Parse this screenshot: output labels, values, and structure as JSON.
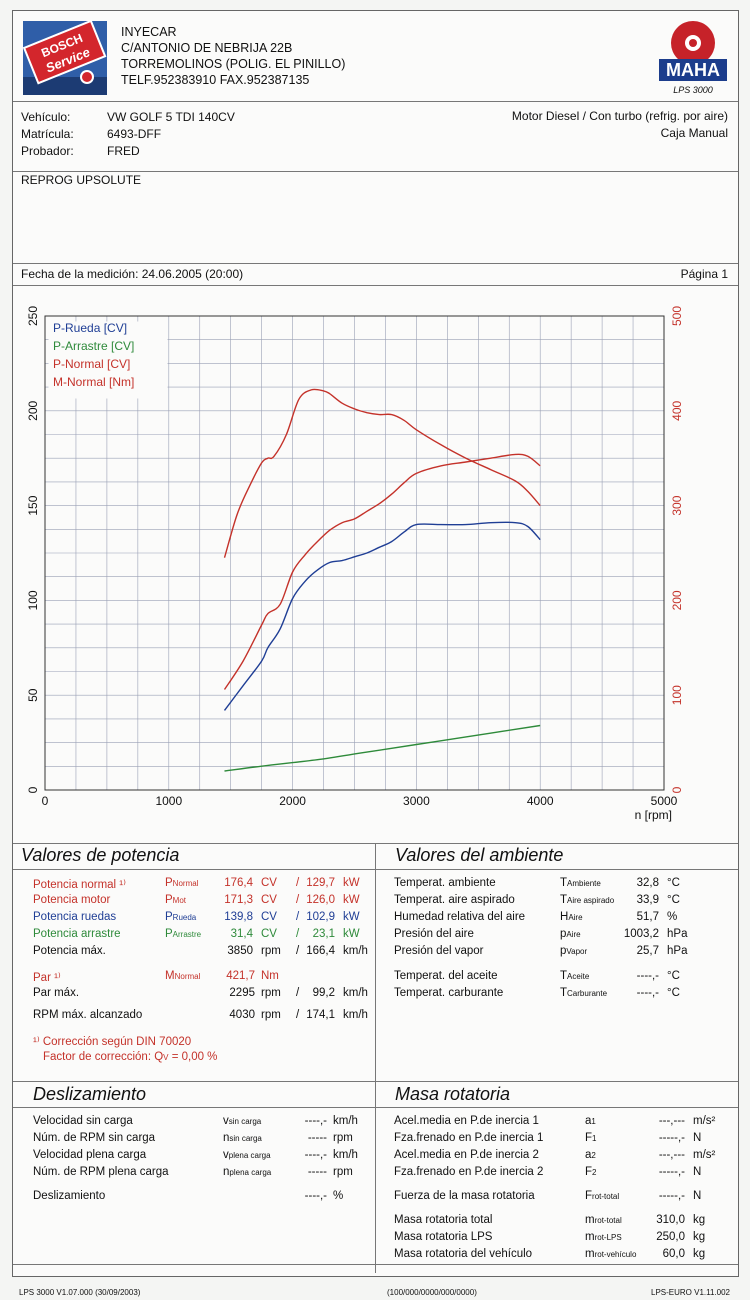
{
  "header": {
    "company": "INYECAR",
    "address1": "C/ANTONIO DE NEBRIJA 22B",
    "address2": "TORREMOLINOS (POLIG. EL PINILLO)",
    "phone": "TELF.952383910 FAX.952387135",
    "bosch_brand": "BOSCH",
    "bosch_service": "Service",
    "maha_brand": "MAHA",
    "maha_model": "LPS 3000"
  },
  "vehicle": {
    "vehiculo_label": "Vehículo:",
    "vehiculo": "VW GOLF 5 TDI 140CV",
    "matricula_label": "Matrícula:",
    "matricula": "6493-DFF",
    "probador_label": "Probador:",
    "probador": "FRED",
    "engine": "Motor Diesel / Con turbo (refrig. por aire)",
    "gearbox": "Caja Manual"
  },
  "notes": "REPROG UPSOLUTE",
  "measurement": {
    "date_text": "Fecha de la medición: 24.06.2005 (20:00)",
    "page_text": "Página 1"
  },
  "chart_data": {
    "type": "line",
    "xlabel": "n [rpm]",
    "xlim": [
      0,
      5000
    ],
    "ylim_left": [
      0,
      250
    ],
    "ylim_right": [
      0,
      500
    ],
    "x_ticks": [
      0,
      1000,
      2000,
      3000,
      4000,
      5000
    ],
    "y_ticks_left": [
      0,
      50,
      100,
      150,
      200,
      250
    ],
    "y_ticks_right": [
      0,
      100,
      200,
      300,
      400,
      500
    ],
    "grid": true,
    "legend_position": "top-left",
    "series": [
      {
        "name": "P-Rueda [CV]",
        "axis": "left",
        "color": "#1f3e95",
        "x": [
          1450,
          1600,
          1750,
          1800,
          1900,
          2000,
          2100,
          2200,
          2300,
          2400,
          2500,
          2600,
          2700,
          2800,
          2900,
          3000,
          3200,
          3400,
          3600,
          3800,
          3900,
          4000
        ],
        "y": [
          42,
          55,
          68,
          75,
          85,
          101,
          110,
          116,
          120,
          121,
          123,
          125,
          128,
          131,
          136,
          140,
          140,
          140,
          141,
          141,
          139,
          132
        ]
      },
      {
        "name": "P-Arrastre [CV]",
        "axis": "left",
        "color": "#2e8a3a",
        "x": [
          1450,
          1800,
          2200,
          2600,
          3000,
          3400,
          3700,
          4000
        ],
        "y": [
          10,
          13,
          16,
          20,
          24,
          28,
          31,
          34
        ]
      },
      {
        "name": "P-Normal [CV]",
        "axis": "left",
        "color": "#c4322a",
        "x": [
          1450,
          1600,
          1750,
          1800,
          1900,
          2000,
          2100,
          2200,
          2300,
          2400,
          2500,
          2600,
          2700,
          2800,
          2900,
          3000,
          3200,
          3400,
          3600,
          3800,
          3900,
          4000
        ],
        "y": [
          53,
          68,
          87,
          93,
          98,
          115,
          124,
          131,
          137,
          141,
          143,
          147,
          151,
          156,
          162,
          167,
          171,
          173,
          175,
          177,
          176,
          171
        ]
      },
      {
        "name": "M-Normal [Nm]",
        "axis": "right",
        "color": "#c4322a",
        "x": [
          1450,
          1550,
          1650,
          1750,
          1800,
          1850,
          1950,
          2050,
          2150,
          2250,
          2300,
          2400,
          2500,
          2600,
          2700,
          2800,
          2900,
          3000,
          3200,
          3400,
          3600,
          3800,
          3900,
          4000
        ],
        "y": [
          245,
          290,
          320,
          345,
          350,
          352,
          375,
          412,
          422,
          421,
          418,
          408,
          402,
          398,
          396,
          396,
          390,
          380,
          364,
          350,
          338,
          326,
          315,
          300
        ]
      }
    ]
  },
  "potencia": {
    "title": "Valores de potencia",
    "rows": [
      {
        "label": "Potencia normal ¹⁾",
        "sym": "P",
        "sub": "Normal",
        "v1": "176,4",
        "u1": "CV",
        "sep": "/",
        "v2": "129,7",
        "u2": "kW",
        "color": "red"
      },
      {
        "label": "Potencia motor",
        "sym": "P",
        "sub": "Mot",
        "v1": "171,3",
        "u1": "CV",
        "sep": "/",
        "v2": "126,0",
        "u2": "kW",
        "color": "red"
      },
      {
        "label": "Potencia ruedas",
        "sym": "P",
        "sub": "Rueda",
        "v1": "139,8",
        "u1": "CV",
        "sep": "/",
        "v2": "102,9",
        "u2": "kW",
        "color": "blue"
      },
      {
        "label": "Potencia arrastre",
        "sym": "P",
        "sub": "Arrastre",
        "v1": "31,4",
        "u1": "CV",
        "sep": "/",
        "v2": "23,1",
        "u2": "kW",
        "color": "green"
      },
      {
        "label": "Potencia máx.",
        "sym": "",
        "sub": "",
        "v1": "3850",
        "u1": "rpm",
        "sep": "/",
        "v2": "166,4",
        "u2": "km/h",
        "color": "black"
      }
    ],
    "par_label": "Par ¹⁾",
    "par_sym": "M",
    "par_sub": "Normal",
    "par_value": "421,7",
    "par_unit": "Nm",
    "parmax_label": "Par máx.",
    "parmax_v1": "2295",
    "parmax_u1": "rpm",
    "parmax_sep": "/",
    "parmax_v2": "99,2",
    "parmax_u2": "km/h",
    "rpmmax_label": "RPM máx. alcanzado",
    "rpmmax_v1": "4030",
    "rpmmax_u1": "rpm",
    "rpmmax_sep": "/",
    "rpmmax_v2": "174,1",
    "rpmmax_u2": "km/h",
    "correction1": "¹⁾ Corrección según DIN 70020",
    "correction2": "Factor de corrección: Q",
    "correction_sub": "V",
    "correction_value": " =   0,00 %"
  },
  "ambiente": {
    "title": "Valores del ambiente",
    "rows": [
      {
        "label": "Temperat. ambiente",
        "sym": "T",
        "sub": "Ambiente",
        "val": "32,8",
        "unit": "°C"
      },
      {
        "label": "Temperat. aire aspirado",
        "sym": "T",
        "sub": "Aire aspirado",
        "val": "33,9",
        "unit": "°C"
      },
      {
        "label": "Humedad relativa del aire",
        "sym": "H",
        "sub": "Aire",
        "val": "51,7",
        "unit": "%"
      },
      {
        "label": "Presión del aire",
        "sym": "p",
        "sub": "Aire",
        "val": "1003,2",
        "unit": "hPa"
      },
      {
        "label": "Presión del vapor",
        "sym": "p",
        "sub": "Vapor",
        "val": "25,7",
        "unit": "hPa"
      },
      {
        "label": "Temperat. del aceite",
        "sym": "T",
        "sub": "Aceite",
        "val": "----,-",
        "unit": "°C"
      },
      {
        "label": "Temperat. carburante",
        "sym": "T",
        "sub": "Carburante",
        "val": "----,-",
        "unit": "°C"
      }
    ]
  },
  "deslizamiento": {
    "title": "Deslizamiento",
    "rows": [
      {
        "label": "Velocidad sin carga",
        "sym": "v",
        "sub": "sin carga",
        "val": "----,-",
        "unit": "km/h"
      },
      {
        "label": "Núm. de RPM sin carga",
        "sym": "n",
        "sub": "sin carga",
        "val": "-----",
        "unit": "rpm"
      },
      {
        "label": "Velocidad plena carga",
        "sym": "v",
        "sub": "plena carga",
        "val": "----,-",
        "unit": "km/h"
      },
      {
        "label": "Núm. de RPM plena carga",
        "sym": "n",
        "sub": "plena carga",
        "val": "-----",
        "unit": "rpm"
      },
      {
        "label": "Deslizamiento",
        "sym": "",
        "sub": "",
        "val": "----,-",
        "unit": "%"
      }
    ]
  },
  "masa": {
    "title": "Masa rotatoria",
    "rows": [
      {
        "label": "Acel.media en P.de inercia 1",
        "sym": "a",
        "sub": "1",
        "val": "---,---",
        "unit": "m/s²"
      },
      {
        "label": "Fza.frenado en P.de inercia 1",
        "sym": "F",
        "sub": "1",
        "val": "-----,-",
        "unit": "N"
      },
      {
        "label": "Acel.media en P.de inercia 2",
        "sym": "a",
        "sub": "2",
        "val": "---,---",
        "unit": "m/s²"
      },
      {
        "label": "Fza.frenado en P.de inercia 2",
        "sym": "F",
        "sub": "2",
        "val": "-----,-",
        "unit": "N"
      },
      {
        "label": "Fuerza de la masa rotatoria",
        "sym": "F",
        "sub": "rot-total",
        "val": "-----,-",
        "unit": "N"
      },
      {
        "label": "Masa rotatoria total",
        "sym": "m",
        "sub": "rot-total",
        "val": "310,0",
        "unit": "kg"
      },
      {
        "label": "Masa rotatoria LPS",
        "sym": "m",
        "sub": "rot-LPS",
        "val": "250,0",
        "unit": "kg"
      },
      {
        "label": "Masa rotatoria del vehículo",
        "sym": "m",
        "sub": "rot-vehículo",
        "val": "60,0",
        "unit": "kg"
      }
    ]
  },
  "footer": {
    "left": "LPS 3000 V1.07.000 (30/09/2003)",
    "center": "(100/000/0000/000/0000)",
    "right": "LPS-EURO V1.11.002"
  },
  "colors": {
    "red": "#c4322a",
    "blue": "#1f3e95",
    "green": "#2e8a3a",
    "black": "#111111"
  }
}
